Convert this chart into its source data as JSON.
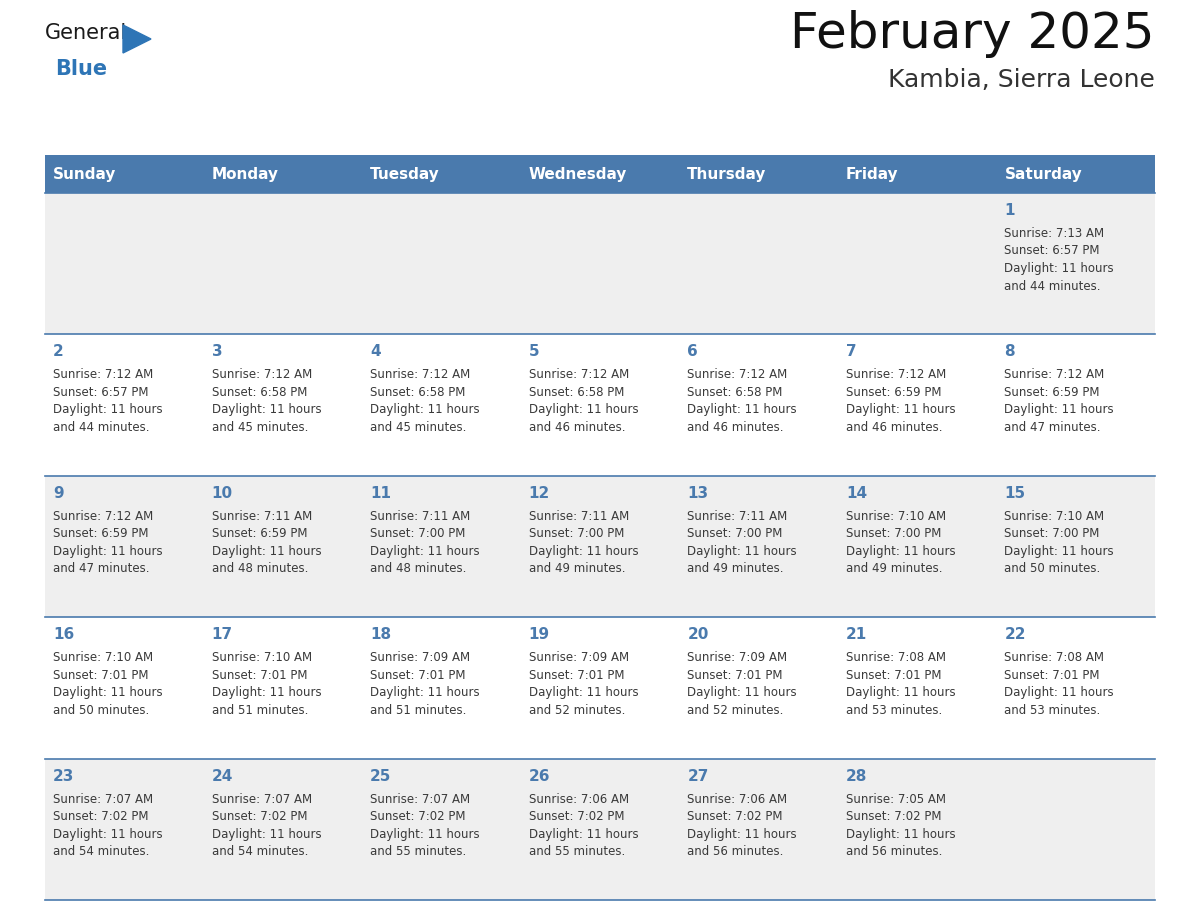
{
  "title": "February 2025",
  "subtitle": "Kambia, Sierra Leone",
  "days_of_week": [
    "Sunday",
    "Monday",
    "Tuesday",
    "Wednesday",
    "Thursday",
    "Friday",
    "Saturday"
  ],
  "header_bg": "#4a7aad",
  "header_text_color": "#ffffff",
  "cell_bg_odd": "#efefef",
  "cell_bg_even": "#ffffff",
  "border_color": "#4a7aad",
  "day_num_color": "#4a7aad",
  "text_color": "#3a3a3a",
  "logo_general_color": "#1a1a1a",
  "logo_blue_color": "#2e75b6",
  "calendar_data": [
    {
      "day": 1,
      "col": 6,
      "row": 0,
      "sunrise": "7:13 AM",
      "sunset": "6:57 PM",
      "daylight": "11 hours and 44 minutes."
    },
    {
      "day": 2,
      "col": 0,
      "row": 1,
      "sunrise": "7:12 AM",
      "sunset": "6:57 PM",
      "daylight": "11 hours and 44 minutes."
    },
    {
      "day": 3,
      "col": 1,
      "row": 1,
      "sunrise": "7:12 AM",
      "sunset": "6:58 PM",
      "daylight": "11 hours and 45 minutes."
    },
    {
      "day": 4,
      "col": 2,
      "row": 1,
      "sunrise": "7:12 AM",
      "sunset": "6:58 PM",
      "daylight": "11 hours and 45 minutes."
    },
    {
      "day": 5,
      "col": 3,
      "row": 1,
      "sunrise": "7:12 AM",
      "sunset": "6:58 PM",
      "daylight": "11 hours and 46 minutes."
    },
    {
      "day": 6,
      "col": 4,
      "row": 1,
      "sunrise": "7:12 AM",
      "sunset": "6:58 PM",
      "daylight": "11 hours and 46 minutes."
    },
    {
      "day": 7,
      "col": 5,
      "row": 1,
      "sunrise": "7:12 AM",
      "sunset": "6:59 PM",
      "daylight": "11 hours and 46 minutes."
    },
    {
      "day": 8,
      "col": 6,
      "row": 1,
      "sunrise": "7:12 AM",
      "sunset": "6:59 PM",
      "daylight": "11 hours and 47 minutes."
    },
    {
      "day": 9,
      "col": 0,
      "row": 2,
      "sunrise": "7:12 AM",
      "sunset": "6:59 PM",
      "daylight": "11 hours and 47 minutes."
    },
    {
      "day": 10,
      "col": 1,
      "row": 2,
      "sunrise": "7:11 AM",
      "sunset": "6:59 PM",
      "daylight": "11 hours and 48 minutes."
    },
    {
      "day": 11,
      "col": 2,
      "row": 2,
      "sunrise": "7:11 AM",
      "sunset": "7:00 PM",
      "daylight": "11 hours and 48 minutes."
    },
    {
      "day": 12,
      "col": 3,
      "row": 2,
      "sunrise": "7:11 AM",
      "sunset": "7:00 PM",
      "daylight": "11 hours and 49 minutes."
    },
    {
      "day": 13,
      "col": 4,
      "row": 2,
      "sunrise": "7:11 AM",
      "sunset": "7:00 PM",
      "daylight": "11 hours and 49 minutes."
    },
    {
      "day": 14,
      "col": 5,
      "row": 2,
      "sunrise": "7:10 AM",
      "sunset": "7:00 PM",
      "daylight": "11 hours and 49 minutes."
    },
    {
      "day": 15,
      "col": 6,
      "row": 2,
      "sunrise": "7:10 AM",
      "sunset": "7:00 PM",
      "daylight": "11 hours and 50 minutes."
    },
    {
      "day": 16,
      "col": 0,
      "row": 3,
      "sunrise": "7:10 AM",
      "sunset": "7:01 PM",
      "daylight": "11 hours and 50 minutes."
    },
    {
      "day": 17,
      "col": 1,
      "row": 3,
      "sunrise": "7:10 AM",
      "sunset": "7:01 PM",
      "daylight": "11 hours and 51 minutes."
    },
    {
      "day": 18,
      "col": 2,
      "row": 3,
      "sunrise": "7:09 AM",
      "sunset": "7:01 PM",
      "daylight": "11 hours and 51 minutes."
    },
    {
      "day": 19,
      "col": 3,
      "row": 3,
      "sunrise": "7:09 AM",
      "sunset": "7:01 PM",
      "daylight": "11 hours and 52 minutes."
    },
    {
      "day": 20,
      "col": 4,
      "row": 3,
      "sunrise": "7:09 AM",
      "sunset": "7:01 PM",
      "daylight": "11 hours and 52 minutes."
    },
    {
      "day": 21,
      "col": 5,
      "row": 3,
      "sunrise": "7:08 AM",
      "sunset": "7:01 PM",
      "daylight": "11 hours and 53 minutes."
    },
    {
      "day": 22,
      "col": 6,
      "row": 3,
      "sunrise": "7:08 AM",
      "sunset": "7:01 PM",
      "daylight": "11 hours and 53 minutes."
    },
    {
      "day": 23,
      "col": 0,
      "row": 4,
      "sunrise": "7:07 AM",
      "sunset": "7:02 PM",
      "daylight": "11 hours and 54 minutes."
    },
    {
      "day": 24,
      "col": 1,
      "row": 4,
      "sunrise": "7:07 AM",
      "sunset": "7:02 PM",
      "daylight": "11 hours and 54 minutes."
    },
    {
      "day": 25,
      "col": 2,
      "row": 4,
      "sunrise": "7:07 AM",
      "sunset": "7:02 PM",
      "daylight": "11 hours and 55 minutes."
    },
    {
      "day": 26,
      "col": 3,
      "row": 4,
      "sunrise": "7:06 AM",
      "sunset": "7:02 PM",
      "daylight": "11 hours and 55 minutes."
    },
    {
      "day": 27,
      "col": 4,
      "row": 4,
      "sunrise": "7:06 AM",
      "sunset": "7:02 PM",
      "daylight": "11 hours and 56 minutes."
    },
    {
      "day": 28,
      "col": 5,
      "row": 4,
      "sunrise": "7:05 AM",
      "sunset": "7:02 PM",
      "daylight": "11 hours and 56 minutes."
    }
  ]
}
